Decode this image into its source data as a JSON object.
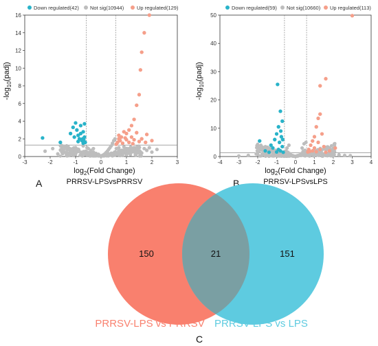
{
  "panels": [
    {
      "letter": "A",
      "comparison": "PRRSV-LPSvsPRRSV",
      "xlabel_base": "log",
      "xlabel_sub": "2",
      "xlabel_rest": "(Fold Change)",
      "ylabel_pre": "-log",
      "ylabel_sub": "10",
      "ylabel_post": "(padj)",
      "legend": [
        {
          "label": "Down regulated(42)",
          "color": "#29b3c9"
        },
        {
          "label": "Not sig(10944)",
          "color": "#bdbdbd"
        },
        {
          "label": "Up regulated(129)",
          "color": "#f59f8a"
        }
      ],
      "chart_data": {
        "type": "scatter",
        "xlim": [
          -3,
          3
        ],
        "ylim": [
          0,
          16
        ],
        "xticks": [
          -3,
          -2,
          -1,
          0,
          1,
          2,
          3
        ],
        "yticks": [
          0,
          2,
          4,
          6,
          8,
          10,
          12,
          14,
          16
        ],
        "vlines": [
          -0.585,
          0.585
        ],
        "hline": 1.3,
        "series": [
          {
            "name": "Down regulated(42)",
            "color": "#29b3c9",
            "points": [
              [
                -2.3,
                2.1
              ],
              [
                -1.6,
                1.6
              ],
              [
                -1.2,
                2.6
              ],
              [
                -1.1,
                3.3
              ],
              [
                -1.0,
                3.8
              ],
              [
                -0.95,
                3.0
              ],
              [
                -0.9,
                2.4
              ],
              [
                -0.85,
                2.0
              ],
              [
                -0.8,
                3.5
              ],
              [
                -0.75,
                1.8
              ],
              [
                -0.7,
                2.8
              ],
              [
                -0.7,
                1.5
              ],
              [
                -0.65,
                2.2
              ],
              [
                -0.65,
                3.7
              ],
              [
                -0.9,
                1.7
              ],
              [
                -1.05,
                2.2
              ],
              [
                -0.8,
                2.6
              ],
              [
                -0.72,
                2.0
              ],
              [
                -0.62,
                1.6
              ],
              [
                -0.68,
                1.9
              ]
            ]
          },
          {
            "name": "Not sig(10944)",
            "color": "#bdbdbd",
            "points": [
              [
                -2.2,
                0.6
              ],
              [
                -1.9,
                0.9
              ],
              [
                -1.7,
                0.3
              ],
              [
                -1.5,
                0.7
              ],
              [
                -1.3,
                1.1
              ],
              [
                -1.1,
                0.4
              ],
              [
                -1.0,
                1.0
              ],
              [
                -0.9,
                0.8
              ],
              [
                -0.8,
                0.5
              ],
              [
                -0.7,
                1.2
              ],
              [
                -0.6,
                0.6
              ],
              [
                -0.5,
                0.9
              ],
              [
                -0.45,
                0.4
              ],
              [
                -0.4,
                0.7
              ],
              [
                -0.35,
                0.3
              ],
              [
                -0.3,
                0.5
              ],
              [
                -0.25,
                0.2
              ],
              [
                -0.2,
                0.35
              ],
              [
                -0.15,
                0.15
              ],
              [
                -0.1,
                0.25
              ],
              [
                -0.05,
                0.1
              ],
              [
                0.0,
                0.05
              ],
              [
                0.05,
                0.12
              ],
              [
                0.1,
                0.2
              ],
              [
                0.15,
                0.3
              ],
              [
                0.2,
                0.45
              ],
              [
                0.25,
                0.6
              ],
              [
                0.3,
                0.8
              ],
              [
                0.35,
                1.0
              ],
              [
                0.4,
                1.2
              ],
              [
                0.45,
                1.5
              ],
              [
                0.5,
                1.8
              ],
              [
                0.55,
                2.0
              ],
              [
                0.6,
                0.9
              ],
              [
                0.7,
                1.0
              ],
              [
                0.8,
                0.7
              ],
              [
                0.9,
                1.1
              ],
              [
                1.0,
                0.6
              ],
              [
                1.1,
                0.9
              ],
              [
                1.2,
                0.5
              ],
              [
                1.3,
                1.0
              ],
              [
                1.4,
                0.8
              ],
              [
                1.5,
                0.6
              ],
              [
                1.6,
                0.4
              ],
              [
                1.7,
                0.9
              ],
              [
                1.8,
                0.7
              ],
              [
                1.9,
                1.0
              ],
              [
                2.0,
                0.5
              ],
              [
                2.2,
                0.8
              ],
              [
                -0.55,
                1.0
              ],
              [
                0.5,
                0.4
              ],
              [
                -0.3,
                0.9
              ],
              [
                0.3,
                0.3
              ]
            ]
          },
          {
            "name": "Up regulated(129)",
            "color": "#f59f8a",
            "points": [
              [
                1.9,
                16.0
              ],
              [
                1.7,
                14.0
              ],
              [
                1.6,
                11.8
              ],
              [
                1.55,
                9.8
              ],
              [
                1.5,
                7.0
              ],
              [
                1.4,
                5.8
              ],
              [
                1.3,
                4.2
              ],
              [
                1.2,
                3.5
              ],
              [
                1.1,
                3.0
              ],
              [
                1.0,
                2.6
              ],
              [
                0.9,
                2.8
              ],
              [
                0.8,
                2.2
              ],
              [
                0.75,
                1.8
              ],
              [
                0.7,
                2.4
              ],
              [
                0.65,
                1.6
              ],
              [
                1.0,
                1.9
              ],
              [
                1.2,
                2.2
              ],
              [
                1.4,
                2.7
              ],
              [
                1.6,
                2.0
              ],
              [
                1.8,
                2.5
              ],
              [
                2.0,
                1.8
              ],
              [
                1.1,
                1.6
              ],
              [
                0.85,
                1.5
              ],
              [
                1.3,
                1.9
              ],
              [
                0.95,
                2.1
              ],
              [
                1.5,
                1.7
              ],
              [
                0.7,
                2.0
              ],
              [
                0.6,
                1.4
              ],
              [
                1.75,
                1.6
              ],
              [
                1.25,
                1.45
              ]
            ]
          }
        ]
      }
    },
    {
      "letter": "B",
      "comparison": "PRRSV-LPSvsLPS",
      "xlabel_base": "log",
      "xlabel_sub": "2",
      "xlabel_rest": "(Fold Change)",
      "ylabel_pre": "-log",
      "ylabel_sub": "10",
      "ylabel_post": "(padj)",
      "legend": [
        {
          "label": "Down regulated(59)",
          "color": "#29b3c9"
        },
        {
          "label": "Not sig(10660)",
          "color": "#bdbdbd"
        },
        {
          "label": "Up regulated(113)",
          "color": "#f59f8a"
        }
      ],
      "chart_data": {
        "type": "scatter",
        "xlim": [
          -4,
          4
        ],
        "ylim": [
          0,
          50
        ],
        "xticks": [
          -4,
          -3,
          -2,
          -1,
          0,
          1,
          2,
          3,
          4
        ],
        "yticks": [
          0,
          10,
          20,
          30,
          40,
          50
        ],
        "vlines": [
          -0.585,
          0.585
        ],
        "hline": 1.3,
        "series": [
          {
            "name": "Down regulated(59)",
            "color": "#29b3c9",
            "points": [
              [
                -0.95,
                25.5
              ],
              [
                -0.8,
                16.0
              ],
              [
                -0.7,
                12.5
              ],
              [
                -0.9,
                10.5
              ],
              [
                -1.0,
                8.0
              ],
              [
                -0.75,
                7.0
              ],
              [
                -1.1,
                6.0
              ],
              [
                -0.85,
                5.0
              ],
              [
                -1.3,
                4.0
              ],
              [
                -0.7,
                3.5
              ],
              [
                -1.2,
                3.0
              ],
              [
                -0.9,
                2.5
              ],
              [
                -1.6,
                2.0
              ],
              [
                -0.8,
                2.0
              ],
              [
                -1.0,
                1.6
              ],
              [
                -0.65,
                1.5
              ],
              [
                -1.4,
                1.5
              ],
              [
                -1.9,
                5.5
              ],
              [
                -0.78,
                9.0
              ],
              [
                -0.68,
                6.0
              ]
            ]
          },
          {
            "name": "Not sig(10660)",
            "color": "#bdbdbd",
            "points": [
              [
                -2.5,
                0.4
              ],
              [
                -2.0,
                0.8
              ],
              [
                -1.8,
                0.3
              ],
              [
                -1.5,
                1.0
              ],
              [
                -1.2,
                0.6
              ],
              [
                -1.0,
                0.9
              ],
              [
                -0.8,
                0.5
              ],
              [
                -0.6,
                1.1
              ],
              [
                -0.5,
                2.0
              ],
              [
                -0.45,
                3.0
              ],
              [
                -0.4,
                1.5
              ],
              [
                -0.35,
                4.0
              ],
              [
                -0.3,
                1.0
              ],
              [
                -0.25,
                0.6
              ],
              [
                -0.2,
                0.4
              ],
              [
                -0.1,
                0.2
              ],
              [
                0.0,
                0.1
              ],
              [
                0.1,
                0.3
              ],
              [
                0.2,
                0.5
              ],
              [
                0.3,
                1.0
              ],
              [
                0.35,
                3.0
              ],
              [
                0.4,
                1.8
              ],
              [
                0.45,
                4.5
              ],
              [
                0.5,
                2.2
              ],
              [
                0.55,
                5.0
              ],
              [
                0.6,
                1.0
              ],
              [
                0.8,
                0.6
              ],
              [
                1.0,
                0.9
              ],
              [
                1.2,
                0.5
              ],
              [
                1.4,
                0.8
              ],
              [
                1.6,
                0.4
              ],
              [
                1.8,
                0.7
              ],
              [
                2.0,
                0.3
              ],
              [
                2.3,
                0.6
              ],
              [
                2.6,
                0.4
              ],
              [
                -3.0,
                0.2
              ],
              [
                2.9,
                0.3
              ]
            ]
          },
          {
            "name": "Up regulated(113)",
            "color": "#f59f8a",
            "points": [
              [
                3.0,
                49.8
              ],
              [
                1.6,
                27.5
              ],
              [
                1.3,
                25.0
              ],
              [
                1.3,
                15.0
              ],
              [
                1.2,
                13.5
              ],
              [
                1.1,
                10.5
              ],
              [
                1.4,
                8.0
              ],
              [
                1.0,
                7.0
              ],
              [
                0.9,
                5.5
              ],
              [
                1.2,
                5.0
              ],
              [
                0.8,
                4.0
              ],
              [
                1.5,
                3.5
              ],
              [
                1.0,
                3.0
              ],
              [
                0.7,
                2.5
              ],
              [
                1.8,
                2.0
              ],
              [
                2.1,
                3.0
              ],
              [
                0.9,
                2.0
              ],
              [
                1.3,
                2.5
              ],
              [
                0.65,
                1.6
              ],
              [
                1.6,
                1.5
              ],
              [
                0.75,
                1.8
              ],
              [
                1.1,
                1.7
              ]
            ]
          }
        ]
      }
    }
  ],
  "venn": {
    "letter": "C",
    "sets": [
      {
        "label": "PRRSV-LPS vs PRRSV",
        "only": "150",
        "color": "#f9806e"
      },
      {
        "label": "PRRSV-LPS vs LPS",
        "only": "151",
        "color": "#5ecbe0"
      }
    ],
    "overlap": "21",
    "overlap_color": "#7a9fa3"
  }
}
